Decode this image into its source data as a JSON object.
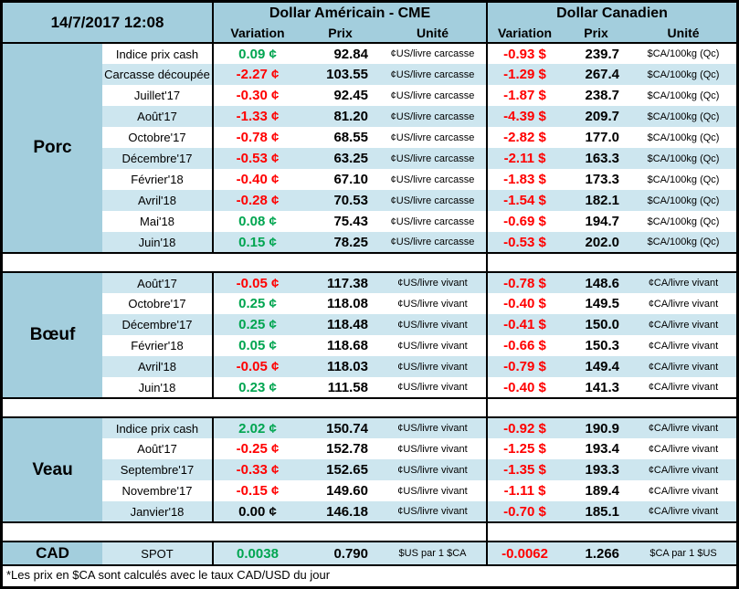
{
  "header": {
    "datetime": "14/7/2017 12:08",
    "us_group": "Dollar Américain - CME",
    "ca_group": "Dollar Canadien",
    "sub": {
      "variation": "Variation",
      "prix": "Prix",
      "unite": "Unité"
    }
  },
  "colors": {
    "header_blue": "#A3CEDD",
    "stripe_blue": "#CDE6EF",
    "positive_green": "#00A550",
    "negative_red": "#FF0000"
  },
  "sections": [
    {
      "category": "Porc",
      "shade_first": false,
      "rows": [
        {
          "label": "Indice prix cash",
          "us": {
            "var": "0.09 ¢",
            "prix": "92.84",
            "unit": "¢US/livre carcasse"
          },
          "ca": {
            "var": "-0.93 $",
            "prix": "239.7",
            "unit": "$CA/100kg (Qc)"
          }
        },
        {
          "label": "Carcasse découpée",
          "us": {
            "var": "-2.27 ¢",
            "prix": "103.55",
            "unit": "¢US/livre carcasse"
          },
          "ca": {
            "var": "-1.29 $",
            "prix": "267.4",
            "unit": "$CA/100kg (Qc)"
          }
        },
        {
          "label": "Juillet'17",
          "us": {
            "var": "-0.30 ¢",
            "prix": "92.45",
            "unit": "¢US/livre carcasse"
          },
          "ca": {
            "var": "-1.87 $",
            "prix": "238.7",
            "unit": "$CA/100kg (Qc)"
          }
        },
        {
          "label": "Août'17",
          "us": {
            "var": "-1.33 ¢",
            "prix": "81.20",
            "unit": "¢US/livre carcasse"
          },
          "ca": {
            "var": "-4.39 $",
            "prix": "209.7",
            "unit": "$CA/100kg (Qc)"
          }
        },
        {
          "label": "Octobre'17",
          "us": {
            "var": "-0.78 ¢",
            "prix": "68.55",
            "unit": "¢US/livre carcasse"
          },
          "ca": {
            "var": "-2.82 $",
            "prix": "177.0",
            "unit": "$CA/100kg (Qc)"
          }
        },
        {
          "label": "Décembre'17",
          "us": {
            "var": "-0.53 ¢",
            "prix": "63.25",
            "unit": "¢US/livre carcasse"
          },
          "ca": {
            "var": "-2.11 $",
            "prix": "163.3",
            "unit": "$CA/100kg (Qc)"
          }
        },
        {
          "label": "Février'18",
          "us": {
            "var": "-0.40 ¢",
            "prix": "67.10",
            "unit": "¢US/livre carcasse"
          },
          "ca": {
            "var": "-1.83 $",
            "prix": "173.3",
            "unit": "$CA/100kg (Qc)"
          }
        },
        {
          "label": "Avril'18",
          "us": {
            "var": "-0.28 ¢",
            "prix": "70.53",
            "unit": "¢US/livre carcasse"
          },
          "ca": {
            "var": "-1.54 $",
            "prix": "182.1",
            "unit": "$CA/100kg (Qc)"
          }
        },
        {
          "label": "Mai'18",
          "us": {
            "var": "0.08 ¢",
            "prix": "75.43",
            "unit": "¢US/livre carcasse"
          },
          "ca": {
            "var": "-0.69 $",
            "prix": "194.7",
            "unit": "$CA/100kg (Qc)"
          }
        },
        {
          "label": "Juin'18",
          "us": {
            "var": "0.15 ¢",
            "prix": "78.25",
            "unit": "¢US/livre carcasse"
          },
          "ca": {
            "var": "-0.53 $",
            "prix": "202.0",
            "unit": "$CA/100kg (Qc)"
          }
        }
      ]
    },
    {
      "category": "Bœuf",
      "shade_first": true,
      "rows": [
        {
          "label": "Août'17",
          "us": {
            "var": "-0.05 ¢",
            "prix": "117.38",
            "unit": "¢US/livre vivant"
          },
          "ca": {
            "var": "-0.78 $",
            "prix": "148.6",
            "unit": "¢CA/livre vivant"
          }
        },
        {
          "label": "Octobre'17",
          "us": {
            "var": "0.25 ¢",
            "prix": "118.08",
            "unit": "¢US/livre vivant"
          },
          "ca": {
            "var": "-0.40 $",
            "prix": "149.5",
            "unit": "¢CA/livre vivant"
          }
        },
        {
          "label": "Décembre'17",
          "us": {
            "var": "0.25 ¢",
            "prix": "118.48",
            "unit": "¢US/livre vivant"
          },
          "ca": {
            "var": "-0.41 $",
            "prix": "150.0",
            "unit": "¢CA/livre vivant"
          }
        },
        {
          "label": "Février'18",
          "us": {
            "var": "0.05 ¢",
            "prix": "118.68",
            "unit": "¢US/livre vivant"
          },
          "ca": {
            "var": "-0.66 $",
            "prix": "150.3",
            "unit": "¢CA/livre vivant"
          }
        },
        {
          "label": "Avril'18",
          "us": {
            "var": "-0.05 ¢",
            "prix": "118.03",
            "unit": "¢US/livre vivant"
          },
          "ca": {
            "var": "-0.79 $",
            "prix": "149.4",
            "unit": "¢CA/livre vivant"
          }
        },
        {
          "label": "Juin'18",
          "us": {
            "var": "0.23 ¢",
            "prix": "111.58",
            "unit": "¢US/livre vivant"
          },
          "ca": {
            "var": "-0.40 $",
            "prix": "141.3",
            "unit": "¢CA/livre vivant"
          }
        }
      ]
    },
    {
      "category": "Veau",
      "shade_first": true,
      "rows": [
        {
          "label": "Indice prix cash",
          "us": {
            "var": "2.02 ¢",
            "prix": "150.74",
            "unit": "¢US/livre vivant"
          },
          "ca": {
            "var": "-0.92 $",
            "prix": "190.9",
            "unit": "¢CA/livre vivant"
          }
        },
        {
          "label": "Août'17",
          "us": {
            "var": "-0.25 ¢",
            "prix": "152.78",
            "unit": "¢US/livre vivant"
          },
          "ca": {
            "var": "-1.25 $",
            "prix": "193.4",
            "unit": "¢CA/livre vivant"
          }
        },
        {
          "label": "Septembre'17",
          "us": {
            "var": "-0.33 ¢",
            "prix": "152.65",
            "unit": "¢US/livre vivant"
          },
          "ca": {
            "var": "-1.35 $",
            "prix": "193.3",
            "unit": "¢CA/livre vivant"
          }
        },
        {
          "label": "Novembre'17",
          "us": {
            "var": "-0.15 ¢",
            "prix": "149.60",
            "unit": "¢US/livre vivant"
          },
          "ca": {
            "var": "-1.11 $",
            "prix": "189.4",
            "unit": "¢CA/livre vivant"
          }
        },
        {
          "label": "Janvier'18",
          "us": {
            "var": "0.00 ¢",
            "prix": "146.18",
            "unit": "¢US/livre vivant"
          },
          "ca": {
            "var": "-0.70 $",
            "prix": "185.1",
            "unit": "¢CA/livre vivant"
          }
        }
      ]
    },
    {
      "category": "CAD",
      "shade_first": true,
      "is_cad": true,
      "rows": [
        {
          "label": "SPOT",
          "us": {
            "var": "0.0038",
            "prix": "0.790",
            "unit": "$US par 1 $CA"
          },
          "ca": {
            "var": "-0.0062",
            "prix": "1.266",
            "unit": "$CA par 1 $US"
          }
        }
      ]
    }
  ],
  "footnote": "*Les  prix en $CA sont calculés avec le taux CAD/USD du jour"
}
